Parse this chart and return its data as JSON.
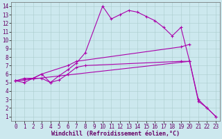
{
  "xlabel": "Windchill (Refroidissement éolien,°C)",
  "background_color": "#cce8ee",
  "line_color": "#aa00aa",
  "grid_color": "#aacccc",
  "xlim": [
    -0.5,
    23.5
  ],
  "ylim": [
    0.5,
    14.5
  ],
  "xticks": [
    0,
    1,
    2,
    3,
    4,
    5,
    6,
    7,
    8,
    9,
    10,
    11,
    12,
    13,
    14,
    15,
    16,
    17,
    18,
    19,
    20,
    21,
    22,
    23
  ],
  "yticks": [
    1,
    2,
    3,
    4,
    5,
    6,
    7,
    8,
    9,
    10,
    11,
    12,
    13,
    14
  ],
  "line1_x": [
    0,
    1,
    2,
    3,
    4,
    5,
    6,
    7,
    8,
    10,
    11,
    12,
    13,
    14,
    15,
    16,
    17,
    18,
    19,
    20,
    21,
    22,
    23
  ],
  "line1_y": [
    5.2,
    5.5,
    5.5,
    6.0,
    5.0,
    5.8,
    6.5,
    7.3,
    8.5,
    14.0,
    12.5,
    13.0,
    13.5,
    13.3,
    12.8,
    12.3,
    11.5,
    10.5,
    11.5,
    7.5,
    3.0,
    2.0,
    1.0
  ],
  "line2_x": [
    0,
    1,
    2,
    3,
    4,
    5,
    6,
    7,
    8,
    19,
    20
  ],
  "line2_y": [
    5.2,
    5.3,
    5.5,
    5.5,
    5.0,
    5.3,
    6.0,
    6.8,
    7.0,
    7.5,
    7.5
  ],
  "line3_x": [
    0,
    20,
    21,
    22,
    23
  ],
  "line3_y": [
    5.2,
    7.5,
    2.8,
    2.0,
    1.0
  ],
  "line4_x": [
    0,
    1,
    2,
    3,
    6,
    7,
    19,
    20
  ],
  "line4_y": [
    5.2,
    5.0,
    5.5,
    6.0,
    7.0,
    7.5,
    9.2,
    9.5
  ],
  "tick_fontsize": 5.5,
  "xlabel_fontsize": 6.0
}
